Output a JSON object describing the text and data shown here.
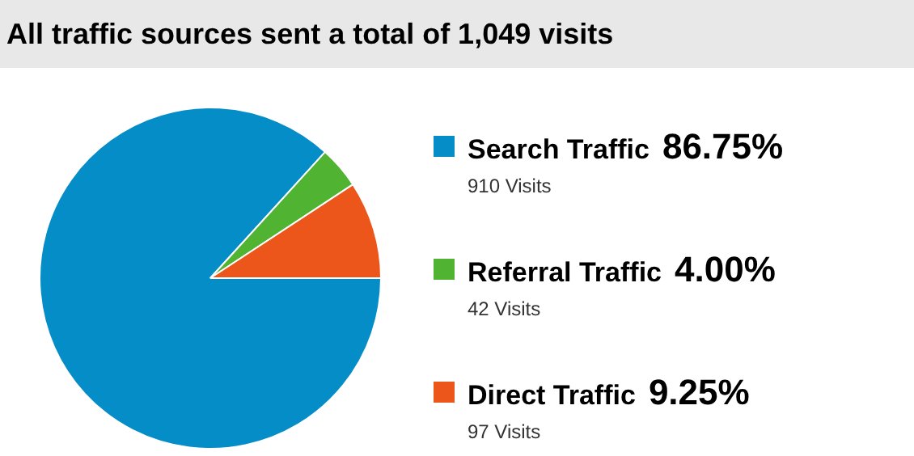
{
  "chart_data": {
    "type": "pie",
    "title": "All traffic sources sent a total of 1,049 visits",
    "categories": [
      "Search Traffic",
      "Referral Traffic",
      "Direct Traffic"
    ],
    "values": [
      86.75,
      4.0,
      9.25
    ],
    "value_labels": [
      "86.75%",
      "4.00%",
      "9.25%"
    ],
    "colors": [
      "#058dc7",
      "#50b432",
      "#ed561b"
    ],
    "annotations": [
      "910 Visits",
      "42 Visits",
      "97 Visits"
    ],
    "legend": "right"
  }
}
